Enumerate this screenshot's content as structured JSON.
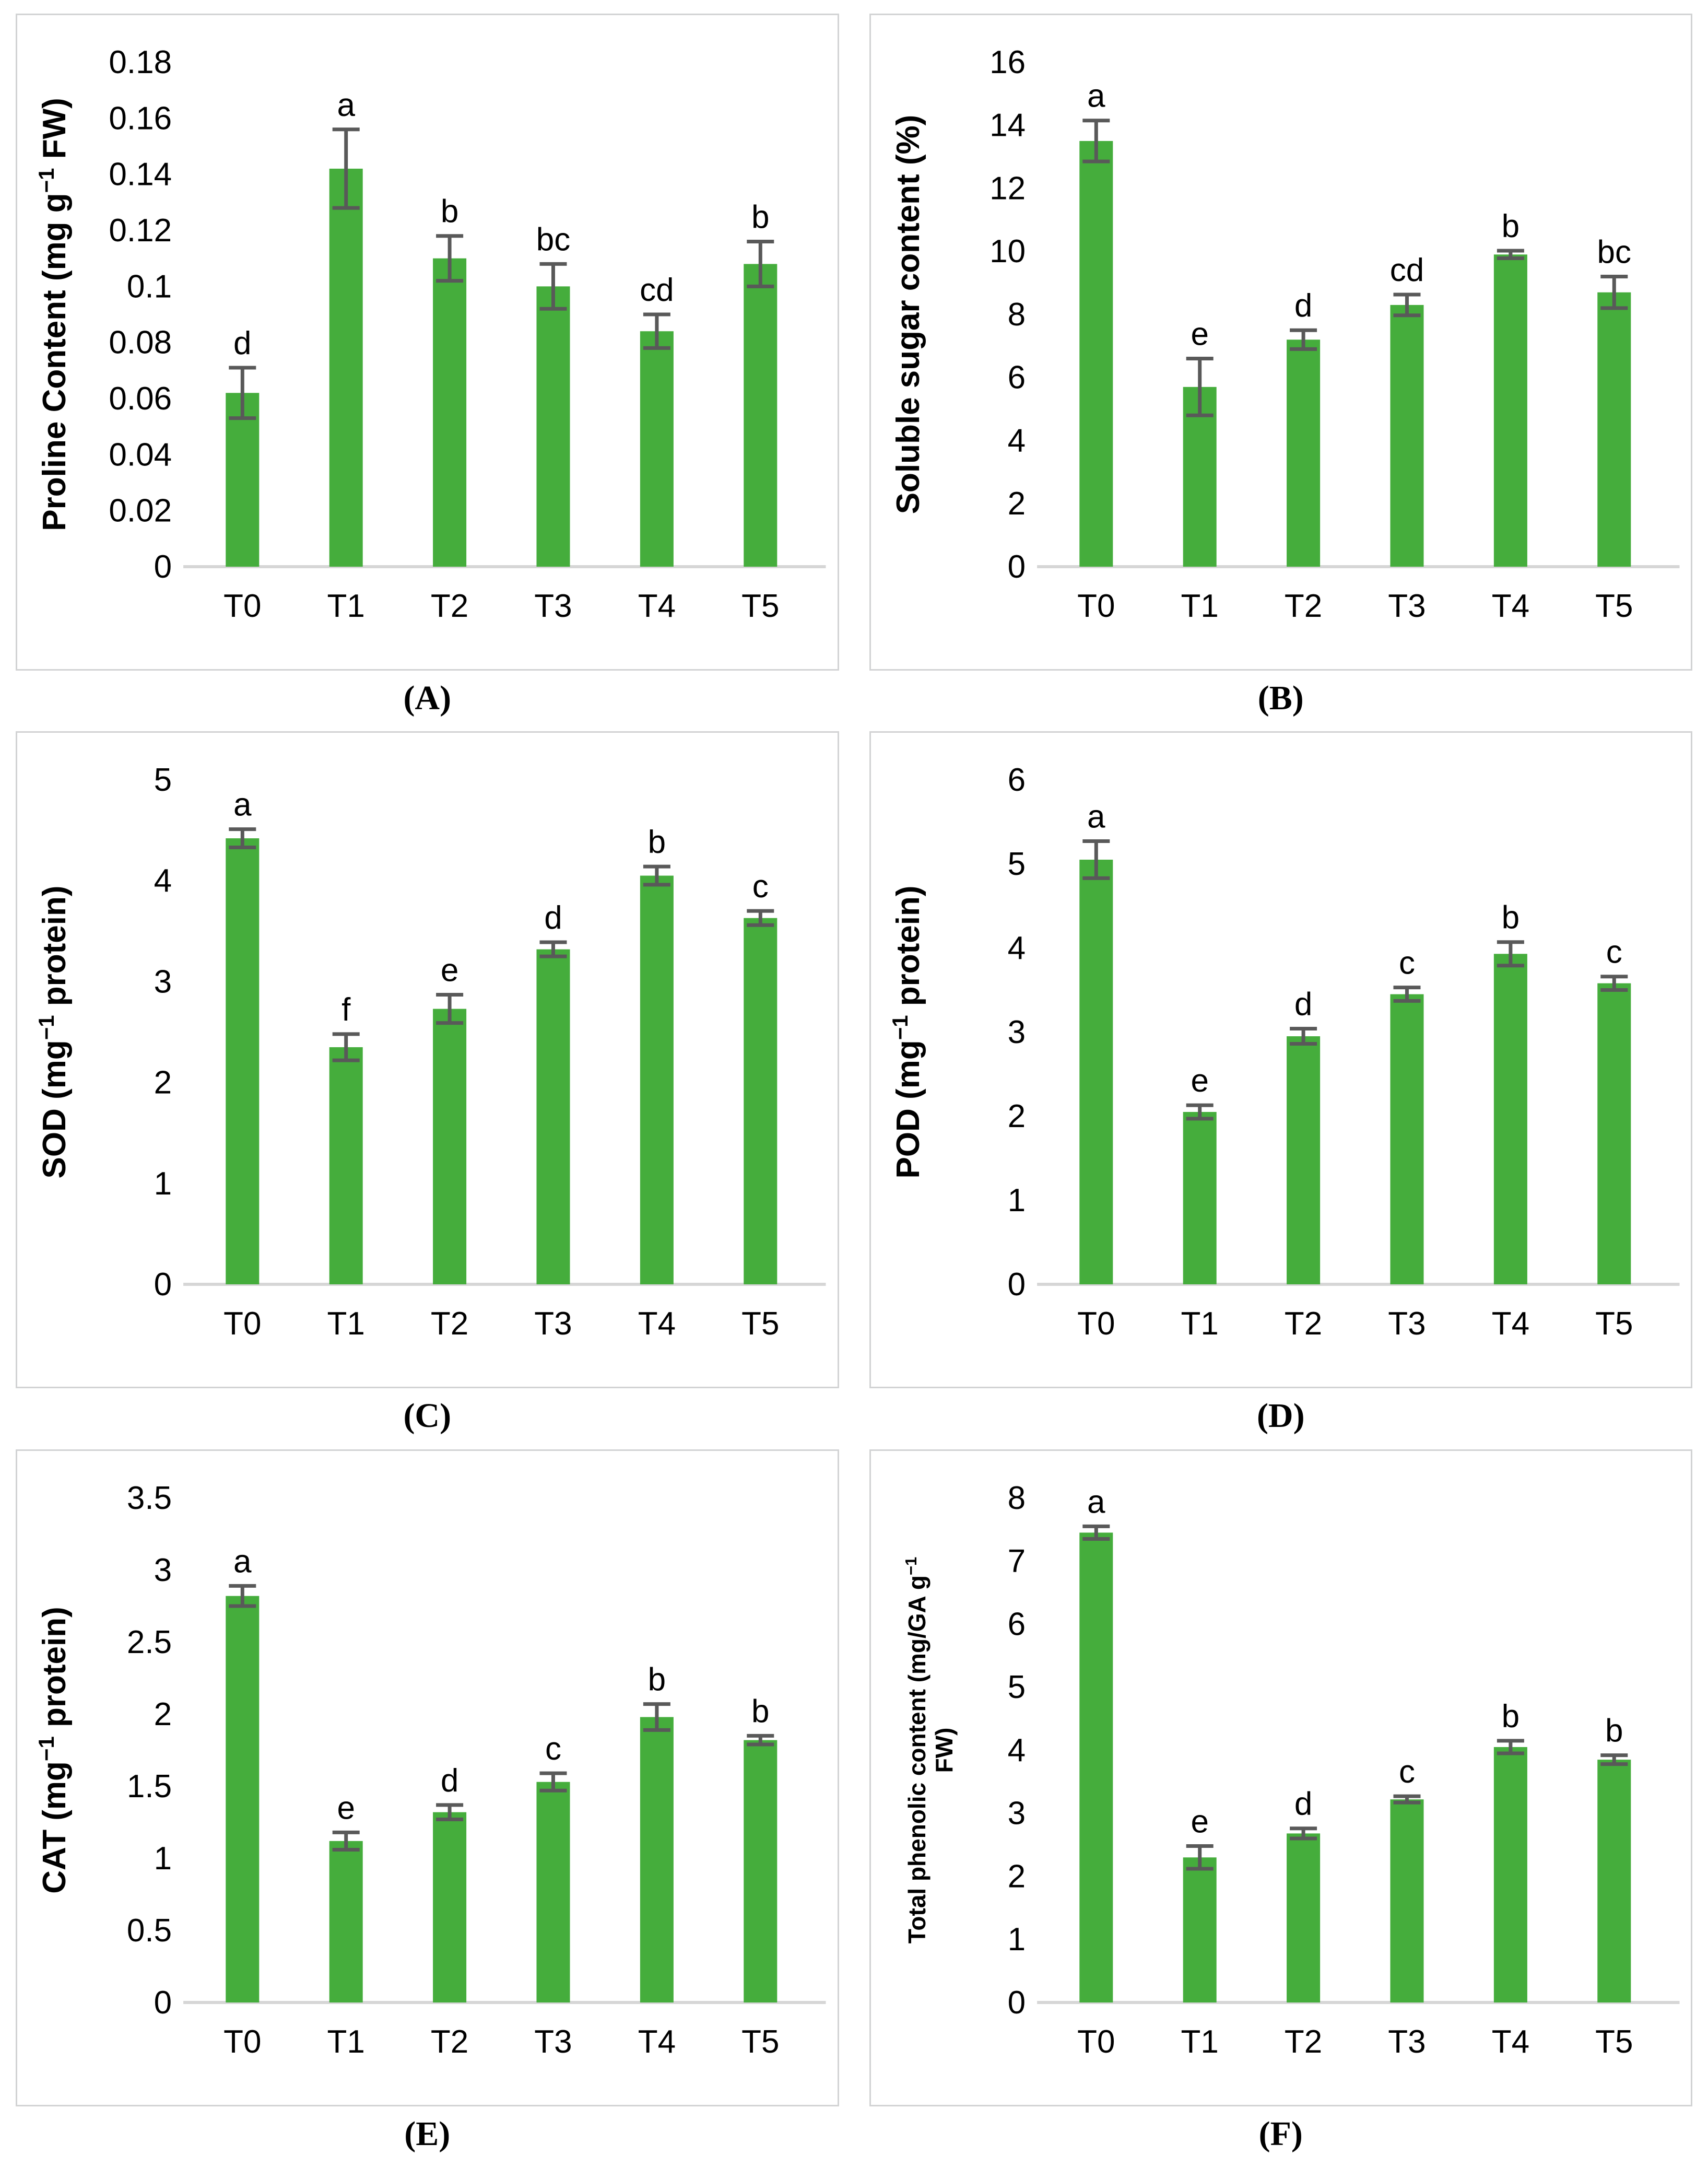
{
  "figure": {
    "background": "#ffffff",
    "bar_color": "#45ad3c",
    "error_bar_color": "#595959",
    "axis_line_color": "#d6d6d6",
    "text_color": "#000000",
    "panel_border_color": "#d2d3d4"
  },
  "chart_data": [
    {
      "id": "A",
      "caption": "(A)",
      "type": "bar",
      "ylabel": "Proline Content (mg g−1 FW)",
      "ylabel_lines": [
        [
          {
            "t": "Proline Content (mg g"
          },
          {
            "t": "−1",
            "sup": true
          },
          {
            "t": " FW)"
          }
        ]
      ],
      "xlabel": "",
      "categories": [
        "T0",
        "T1",
        "T2",
        "T3",
        "T4",
        "T5"
      ],
      "values": [
        0.062,
        0.142,
        0.11,
        0.1,
        0.084,
        0.108
      ],
      "errors": [
        0.009,
        0.014,
        0.008,
        0.008,
        0.006,
        0.008
      ],
      "letters": [
        "d",
        "a",
        "b",
        "bc",
        "cd",
        "b"
      ],
      "ylim": [
        0,
        0.18
      ],
      "yticks": [
        "0",
        "0.02",
        "0.04",
        "0.06",
        "0.08",
        "0.1",
        "0.12",
        "0.14",
        "0.16",
        "0.18"
      ],
      "ytick_values": [
        0,
        0.02,
        0.04,
        0.06,
        0.08,
        0.1,
        0.12,
        0.14,
        0.16,
        0.18
      ],
      "grid": false,
      "legend": "none"
    },
    {
      "id": "B",
      "caption": "(B)",
      "type": "bar",
      "ylabel": "Soluble sugar content (%)",
      "ylabel_lines": [
        [
          {
            "t": "Soluble sugar content (%)"
          }
        ]
      ],
      "xlabel": "",
      "categories": [
        "T0",
        "T1",
        "T2",
        "T3",
        "T4",
        "T5"
      ],
      "values": [
        13.5,
        5.7,
        7.2,
        8.3,
        9.9,
        8.7
      ],
      "errors": [
        0.65,
        0.9,
        0.3,
        0.33,
        0.12,
        0.5
      ],
      "letters": [
        "a",
        "e",
        "d",
        "cd",
        "b",
        "bc"
      ],
      "ylim": [
        0,
        16
      ],
      "yticks": [
        "0",
        "2",
        "4",
        "6",
        "8",
        "10",
        "12",
        "14",
        "16"
      ],
      "ytick_values": [
        0,
        2,
        4,
        6,
        8,
        10,
        12,
        14,
        16
      ],
      "grid": false,
      "legend": "none"
    },
    {
      "id": "C",
      "caption": "(C)",
      "type": "bar",
      "ylabel": "SOD (mg−1 protein)",
      "ylabel_lines": [
        [
          {
            "t": "SOD (mg"
          },
          {
            "t": "−1",
            "sup": true
          },
          {
            "t": " protein)"
          }
        ]
      ],
      "xlabel": "",
      "categories": [
        "T0",
        "T1",
        "T2",
        "T3",
        "T4",
        "T5"
      ],
      "values": [
        4.42,
        2.35,
        2.73,
        3.32,
        4.05,
        3.63
      ],
      "errors": [
        0.09,
        0.13,
        0.14,
        0.07,
        0.09,
        0.07
      ],
      "letters": [
        "a",
        "f",
        "e",
        "d",
        "b",
        "c"
      ],
      "ylim": [
        0,
        5
      ],
      "yticks": [
        "0",
        "1",
        "2",
        "3",
        "4",
        "5"
      ],
      "ytick_values": [
        0,
        1,
        2,
        3,
        4,
        5
      ],
      "grid": false,
      "legend": "none"
    },
    {
      "id": "D",
      "caption": "(D)",
      "type": "bar",
      "ylabel": "POD (mg−1 protein)",
      "ylabel_lines": [
        [
          {
            "t": "POD (mg"
          },
          {
            "t": "−1",
            "sup": true
          },
          {
            "t": " protein)"
          }
        ]
      ],
      "xlabel": "",
      "categories": [
        "T0",
        "T1",
        "T2",
        "T3",
        "T4",
        "T5"
      ],
      "values": [
        5.05,
        2.05,
        2.95,
        3.45,
        3.93,
        3.58
      ],
      "errors": [
        0.22,
        0.08,
        0.09,
        0.08,
        0.14,
        0.08
      ],
      "letters": [
        "a",
        "e",
        "d",
        "c",
        "b",
        "c"
      ],
      "ylim": [
        0,
        6
      ],
      "yticks": [
        "0",
        "1",
        "2",
        "3",
        "4",
        "5",
        "6"
      ],
      "ytick_values": [
        0,
        1,
        2,
        3,
        4,
        5,
        6
      ],
      "grid": false,
      "legend": "none"
    },
    {
      "id": "E",
      "caption": "(E)",
      "type": "bar",
      "ylabel": "CAT (mg−1 protein)",
      "ylabel_lines": [
        [
          {
            "t": "CAT (mg"
          },
          {
            "t": "−1",
            "sup": true
          },
          {
            "t": " protein)"
          }
        ]
      ],
      "xlabel": "",
      "categories": [
        "T0",
        "T1",
        "T2",
        "T3",
        "T4",
        "T5"
      ],
      "values": [
        2.82,
        1.12,
        1.32,
        1.53,
        1.98,
        1.82
      ],
      "errors": [
        0.07,
        0.06,
        0.05,
        0.06,
        0.09,
        0.03
      ],
      "letters": [
        "a",
        "e",
        "d",
        "c",
        "b",
        "b"
      ],
      "ylim": [
        0,
        3.5
      ],
      "yticks": [
        "0",
        "0.5",
        "1",
        "1.5",
        "2",
        "2.5",
        "3",
        "3.5"
      ],
      "ytick_values": [
        0,
        0.5,
        1,
        1.5,
        2,
        2.5,
        3,
        3.5
      ],
      "grid": false,
      "legend": "none"
    },
    {
      "id": "F",
      "caption": "(F)",
      "type": "bar",
      "ylabel": "Total phenolic content (mg/GA g−1 FW)",
      "ylabel_lines": [
        [
          {
            "t": "Total phenolic content (mg/GA g"
          },
          {
            "t": "−1",
            "sup": true
          }
        ],
        [
          {
            "t": "FW)"
          }
        ]
      ],
      "small_ylabel": true,
      "xlabel": "",
      "categories": [
        "T0",
        "T1",
        "T2",
        "T3",
        "T4",
        "T5"
      ],
      "values": [
        7.45,
        2.3,
        2.68,
        3.22,
        4.05,
        3.85
      ],
      "errors": [
        0.1,
        0.18,
        0.08,
        0.05,
        0.1,
        0.07
      ],
      "letters": [
        "a",
        "e",
        "d",
        "c",
        "b",
        "b"
      ],
      "ylim": [
        0,
        8
      ],
      "yticks": [
        "0",
        "1",
        "2",
        "3",
        "4",
        "5",
        "6",
        "7",
        "8"
      ],
      "ytick_values": [
        0,
        1,
        2,
        3,
        4,
        5,
        6,
        7,
        8
      ],
      "grid": false,
      "legend": "none"
    }
  ]
}
